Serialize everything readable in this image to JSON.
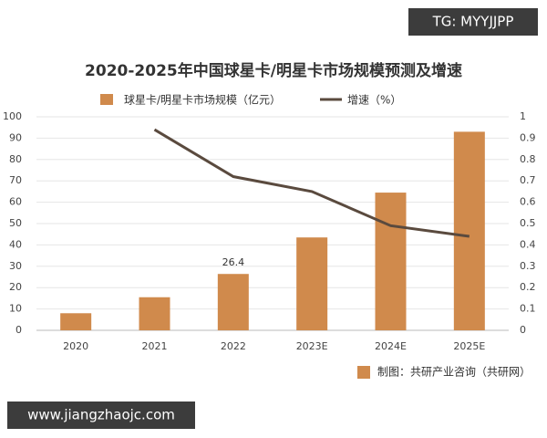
{
  "chart_data": {
    "type": "bar_line",
    "title": "2020-2025年中国球星卡/明星卡市场规模预测及增速",
    "categories": [
      "2020",
      "2021",
      "2022",
      "2023E",
      "2024E",
      "2025E"
    ],
    "series": [
      {
        "name": "球星卡/明星卡市场规模（亿元）",
        "type": "bar",
        "color": "#d08a4c",
        "values": [
          8,
          15.5,
          26.4,
          43.5,
          64.5,
          93
        ],
        "value_labels": [
          null,
          null,
          "26.4",
          null,
          null,
          null
        ]
      },
      {
        "name": "增速（%）",
        "type": "line",
        "axis": "y2",
        "color": "#5a4a3e",
        "values": [
          null,
          0.94,
          0.72,
          0.65,
          0.49,
          0.44
        ]
      }
    ],
    "ylim": [
      0,
      100
    ],
    "yticks": [
      0,
      10,
      20,
      30,
      40,
      50,
      60,
      70,
      80,
      90,
      100
    ],
    "y2lim": [
      0,
      1
    ],
    "y2ticks": [
      0,
      0.1,
      0.2,
      0.3,
      0.4,
      0.5,
      0.6,
      0.7,
      0.8,
      0.9,
      1
    ],
    "grid": true,
    "legend": "top",
    "source": "制图：共研产业咨询（共研网）"
  },
  "watermarks": [
    "TG: MYYJJPP",
    "www.jiangzhaojc.com"
  ]
}
